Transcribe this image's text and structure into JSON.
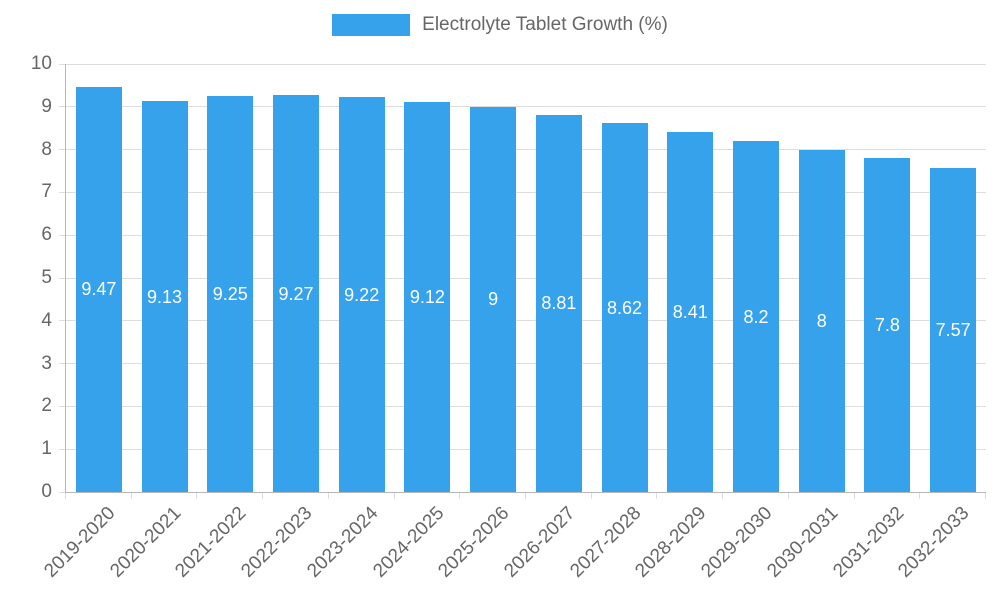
{
  "chart_data": {
    "type": "bar",
    "title": "Electrolyte Tablet Growth (%)",
    "categories": [
      "2019-2020",
      "2020-2021",
      "2021-2022",
      "2022-2023",
      "2023-2024",
      "2024-2025",
      "2025-2026",
      "2026-2027",
      "2027-2028",
      "2028-2029",
      "2029-2030",
      "2030-2031",
      "2031-2032",
      "2032-2033"
    ],
    "values": [
      9.47,
      9.13,
      9.25,
      9.27,
      9.22,
      9.12,
      9,
      8.81,
      8.62,
      8.41,
      8.2,
      8,
      7.8,
      7.57
    ],
    "xlabel": "",
    "ylabel": "",
    "ylim": [
      0,
      10
    ],
    "y_ticks": [
      0,
      1,
      2,
      3,
      4,
      5,
      6,
      7,
      8,
      9,
      10
    ],
    "grid": true,
    "legend_position": "top",
    "bar_color": "#36A2EB",
    "value_label_color": "#ffffff",
    "tick_text_color": "#666666",
    "gridline_color": "#dddddd",
    "axis_line_color": "#b7b7b7"
  }
}
